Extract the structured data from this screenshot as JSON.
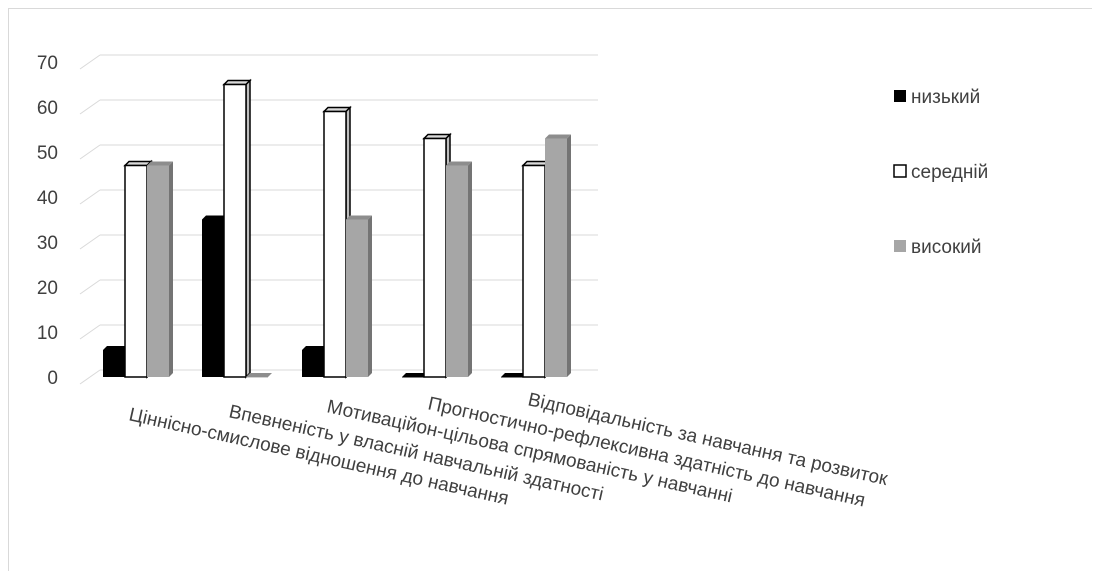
{
  "chart_data": {
    "type": "bar",
    "categories": [
      "Ціннісно-смислове відношення до навчання",
      "Впевненість у власній навчальній здатності",
      "Мотиваційон-цільова спрямованість у навчанні",
      "Прогностично-рефлексивна здатність до навчання",
      "Відповідальність за навчання та розвиток"
    ],
    "series": [
      {
        "name": "низький",
        "values": [
          6,
          35,
          6,
          0,
          0
        ],
        "color": "#000000"
      },
      {
        "name": "середній",
        "values": [
          47,
          65,
          59,
          53,
          47
        ],
        "color": "#ffffff"
      },
      {
        "name": "високий",
        "values": [
          47,
          0,
          35,
          47,
          53
        ],
        "color": "#a6a6a6"
      }
    ],
    "ylim": [
      0,
      70
    ],
    "yticks": [
      "0",
      "10",
      "20",
      "30",
      "40",
      "50",
      "60",
      "70"
    ],
    "grid": true,
    "legend": "right"
  }
}
